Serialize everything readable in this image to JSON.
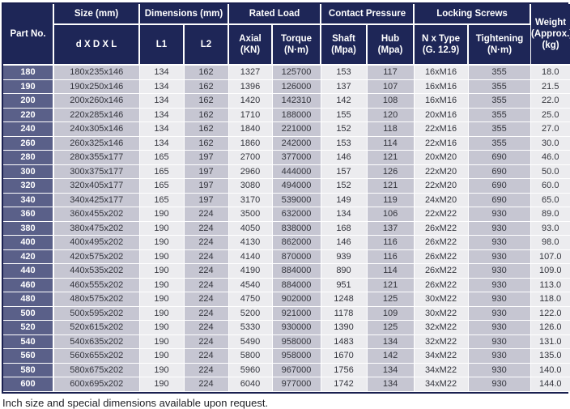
{
  "colors": {
    "header_bg": "#1e2657",
    "part_column_bg": "#5a6089",
    "column_shade": "#c6c6d2",
    "column_light": "#ececef",
    "header_text": "#ffffff",
    "data_text": "#34353d",
    "outer_border": "#1a2050"
  },
  "table": {
    "column_keys": [
      "part_no",
      "size",
      "l1",
      "l2",
      "axial_kn",
      "torque_nm",
      "shaft_mpa",
      "hub_mpa",
      "n_x_type",
      "tightening_nm",
      "weight_kg"
    ],
    "header": {
      "part_no": "Part No.",
      "size_group": "Size (mm)",
      "size_sub": "d X D X L",
      "dimensions_group": "Dimensions (mm)",
      "l1": "L1",
      "l2": "L2",
      "rated_load_group": "Rated Load",
      "axial_line1": "Axial",
      "axial_line2": "(KN)",
      "torque_line1": "Torque",
      "torque_line2": "(N·m)",
      "contact_pressure_group": "Contact Pressure",
      "shaft_line1": "Shaft",
      "shaft_line2": "(Mpa)",
      "hub_line1": "Hub",
      "hub_line2": "(Mpa)",
      "locking_screws_group": "Locking Screws",
      "ntype_line1": "N x Type",
      "ntype_line2": "(G. 12.9)",
      "tightening_line1": "Tightening",
      "tightening_line2": "(N·m)",
      "weight_line1": "Weight",
      "weight_line2": "(Approx.)",
      "weight_line3": "(kg)"
    },
    "rows": [
      [
        "180",
        "180x235x146",
        "134",
        "162",
        "1327",
        "125700",
        "153",
        "117",
        "16xM16",
        "355",
        "18.0"
      ],
      [
        "190",
        "190x250x146",
        "134",
        "162",
        "1396",
        "126000",
        "137",
        "107",
        "16xM16",
        "355",
        "21.5"
      ],
      [
        "200",
        "200x260x146",
        "134",
        "162",
        "1420",
        "142310",
        "142",
        "108",
        "16xM16",
        "355",
        "22.0"
      ],
      [
        "220",
        "220x285x146",
        "134",
        "162",
        "1710",
        "188000",
        "155",
        "120",
        "20xM16",
        "355",
        "25.0"
      ],
      [
        "240",
        "240x305x146",
        "134",
        "162",
        "1840",
        "221000",
        "152",
        "118",
        "22xM16",
        "355",
        "27.0"
      ],
      [
        "260",
        "260x325x146",
        "134",
        "162",
        "1860",
        "242000",
        "153",
        "114",
        "22xM16",
        "355",
        "30.0"
      ],
      [
        "280",
        "280x355x177",
        "165",
        "197",
        "2700",
        "377000",
        "146",
        "121",
        "20xM20",
        "690",
        "46.0"
      ],
      [
        "300",
        "300x375x177",
        "165",
        "197",
        "2960",
        "444000",
        "157",
        "126",
        "22xM20",
        "690",
        "50.0"
      ],
      [
        "320",
        "320x405x177",
        "165",
        "197",
        "3080",
        "494000",
        "152",
        "121",
        "22xM20",
        "690",
        "60.0"
      ],
      [
        "340",
        "340x425x177",
        "165",
        "197",
        "3170",
        "539000",
        "149",
        "119",
        "24xM20",
        "690",
        "65.0"
      ],
      [
        "360",
        "360x455x202",
        "190",
        "224",
        "3500",
        "632000",
        "134",
        "106",
        "22xM22",
        "930",
        "89.0"
      ],
      [
        "380",
        "380x475x202",
        "190",
        "224",
        "4050",
        "838000",
        "168",
        "137",
        "26xM22",
        "930",
        "93.0"
      ],
      [
        "400",
        "400x495x202",
        "190",
        "224",
        "4130",
        "862000",
        "146",
        "116",
        "26xM22",
        "930",
        "98.0"
      ],
      [
        "420",
        "420x575x202",
        "190",
        "224",
        "4140",
        "870000",
        "939",
        "116",
        "26xM22",
        "930",
        "107.0"
      ],
      [
        "440",
        "440x535x202",
        "190",
        "224",
        "4190",
        "884000",
        "890",
        "114",
        "26xM22",
        "930",
        "109.0"
      ],
      [
        "460",
        "460x555x202",
        "190",
        "224",
        "4540",
        "884000",
        "951",
        "121",
        "26xM22",
        "930",
        "113.0"
      ],
      [
        "480",
        "480x575x202",
        "190",
        "224",
        "4750",
        "902000",
        "1248",
        "125",
        "30xM22",
        "930",
        "118.0"
      ],
      [
        "500",
        "500x595x202",
        "190",
        "224",
        "5200",
        "921000",
        "1178",
        "109",
        "30xM22",
        "930",
        "122.0"
      ],
      [
        "520",
        "520x615x202",
        "190",
        "224",
        "5330",
        "930000",
        "1390",
        "125",
        "32xM22",
        "930",
        "126.0"
      ],
      [
        "540",
        "540x635x202",
        "190",
        "224",
        "5490",
        "958000",
        "1483",
        "134",
        "32xM22",
        "930",
        "131.0"
      ],
      [
        "560",
        "560x655x202",
        "190",
        "224",
        "5800",
        "958000",
        "1670",
        "142",
        "34xM22",
        "930",
        "135.0"
      ],
      [
        "580",
        "580x675x202",
        "190",
        "224",
        "5960",
        "967000",
        "1756",
        "134",
        "34xM22",
        "930",
        "140.0"
      ],
      [
        "600",
        "600x695x202",
        "190",
        "224",
        "6040",
        "977000",
        "1742",
        "134",
        "34xM22",
        "930",
        "144.0"
      ]
    ]
  },
  "footer": {
    "note": "Inch size and special dimensions available upon request."
  }
}
